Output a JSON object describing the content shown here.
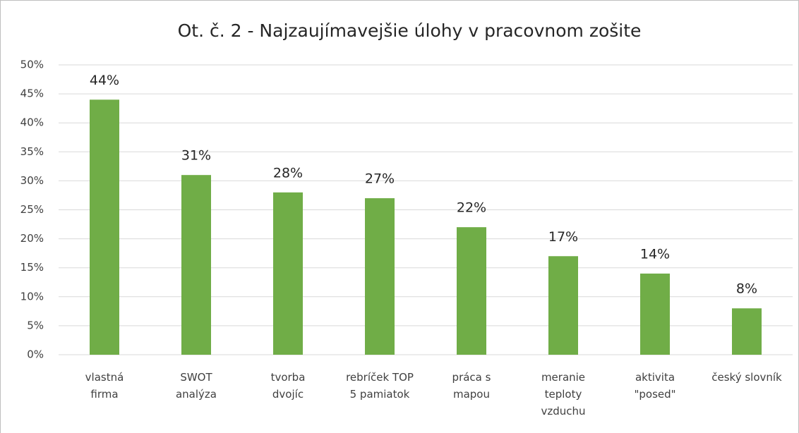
{
  "chart_data": {
    "type": "bar",
    "title": "Ot. č. 2 - Najzaujímavejšie úlohy v pracovnom zošite",
    "categories": [
      "vlastná\nfirma",
      "SWOT\nanalýza",
      "tvorba\ndvojíc",
      "rebríček TOP\n5 pamiatok",
      "práca s\nmapou",
      "meranie\nteploty\nvzduchu",
      "aktivita\n\"posed\"",
      "český slovník"
    ],
    "values": [
      44,
      31,
      28,
      27,
      22,
      17,
      14,
      8
    ],
    "value_labels": [
      "44%",
      "31%",
      "28%",
      "27%",
      "22%",
      "17%",
      "14%",
      "8%"
    ],
    "color": "#70ad47",
    "ylim": [
      0,
      50
    ],
    "yticks": [
      {
        "value": 0,
        "label": "0%"
      },
      {
        "value": 5,
        "label": "5%"
      },
      {
        "value": 10,
        "label": "10%"
      },
      {
        "value": 15,
        "label": "15%"
      },
      {
        "value": 20,
        "label": "20%"
      },
      {
        "value": 25,
        "label": "25%"
      },
      {
        "value": 30,
        "label": "30%"
      },
      {
        "value": 35,
        "label": "35%"
      },
      {
        "value": 40,
        "label": "40%"
      },
      {
        "value": 45,
        "label": "45%"
      },
      {
        "value": 50,
        "label": "50%"
      }
    ],
    "grid": true
  }
}
